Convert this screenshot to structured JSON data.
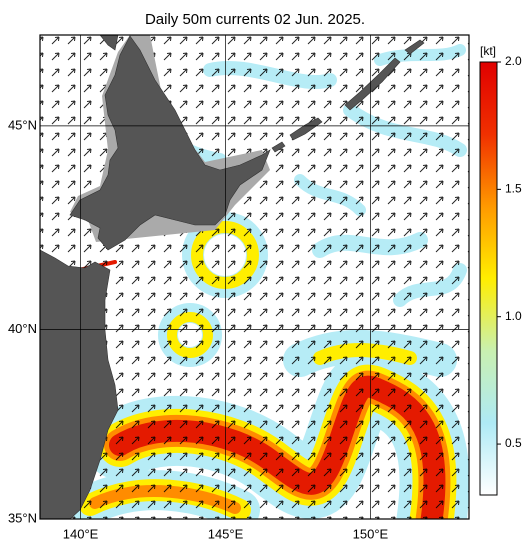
{
  "chart_data": {
    "type": "map",
    "title": "Daily 50m currents 02 Jun. 2025.",
    "projection": "mercator",
    "xlim": [
      138.6,
      153.4
    ],
    "ylim": [
      35,
      47.1
    ],
    "xticks": [
      {
        "value": 140,
        "label": "140°E"
      },
      {
        "value": 145,
        "label": "145°E"
      },
      {
        "value": 150,
        "label": "150°E"
      }
    ],
    "yticks": [
      {
        "value": 35,
        "label": "35°N"
      },
      {
        "value": 40,
        "label": "40°N"
      },
      {
        "value": 45,
        "label": "45°N"
      }
    ],
    "grid": true,
    "colorbar": {
      "label": "[kt]",
      "lim": [
        0.3,
        2.0
      ],
      "ticks": [
        0.5,
        {
          "value": 1,
          "label": "1.0"
        },
        1.5,
        {
          "value": 2,
          "label": "2.0"
        }
      ],
      "colors": [
        "#ffffff",
        "#aeeaf5",
        "#c9f0b0",
        "#ffee00",
        "#ff9900",
        "#f03000",
        "#e00000"
      ]
    }
  }
}
